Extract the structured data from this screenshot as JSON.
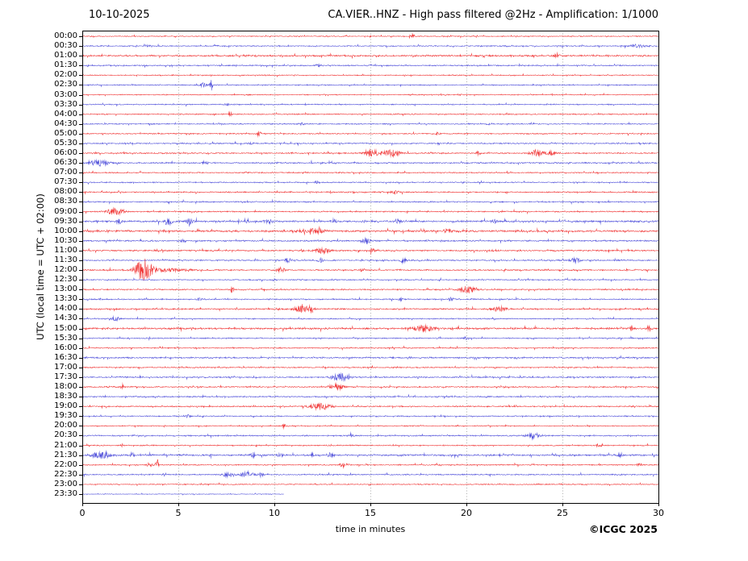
{
  "header": {
    "date_label": "10-10-2025",
    "title": "CA.VIER..HNZ - High pass filtered @2Hz - Amplification: 1/1000"
  },
  "footer": {
    "copyright": "©ICGC 2025"
  },
  "colors": {
    "red": "#ee1c1c",
    "blue": "#3b3bd6",
    "axis": "#000000",
    "grid": "#999999",
    "background": "#ffffff"
  },
  "chart_data": {
    "type": "line",
    "subtype": "helicorder-seismogram",
    "station": "CA.VIER..HNZ",
    "date": "10-10-2025",
    "filter": "High pass filtered @2Hz",
    "amplification": "1/1000",
    "title_right": "CA.VIER..HNZ - High pass filtered @2Hz - Amplification: 1/1000",
    "xlabel": "time in minutes",
    "ylabel": "UTC (local time = UTC + 02:00)",
    "xlim": [
      0,
      30
    ],
    "x_ticks": [
      0,
      5,
      10,
      15,
      20,
      25,
      30
    ],
    "grid": "vertical dotted lines at 5-minute intervals",
    "legend": "none",
    "minutes_per_row": 30,
    "events_format": "[start_minute, peak_amplitude_px, envelope_sigma_min]",
    "rows": [
      {
        "t": "00:00",
        "c": "red",
        "n": 0.7,
        "end": 30,
        "e": [
          [
            17.2,
            2.5,
            0.1
          ]
        ]
      },
      {
        "t": "00:30",
        "c": "blue",
        "n": 0.8,
        "end": 30,
        "e": [
          [
            28.9,
            2.2,
            0.25
          ],
          [
            3.4,
            1.2,
            0.1
          ]
        ]
      },
      {
        "t": "01:00",
        "c": "red",
        "n": 1.2,
        "end": 30,
        "e": [
          [
            24.7,
            1.8,
            0.12
          ]
        ]
      },
      {
        "t": "01:30",
        "c": "blue",
        "n": 0.9,
        "end": 30,
        "e": [
          [
            12.3,
            1.2,
            0.1
          ]
        ]
      },
      {
        "t": "02:00",
        "c": "red",
        "n": 0.7,
        "end": 30,
        "e": []
      },
      {
        "t": "02:30",
        "c": "blue",
        "n": 0.8,
        "end": 30,
        "e": [
          [
            6.7,
            8,
            0.05
          ],
          [
            6.3,
            2.5,
            0.12
          ]
        ]
      },
      {
        "t": "03:00",
        "c": "red",
        "n": 0.7,
        "end": 30,
        "e": []
      },
      {
        "t": "03:30",
        "c": "blue",
        "n": 0.8,
        "end": 30,
        "e": [
          [
            7.5,
            1.4,
            0.1
          ]
        ]
      },
      {
        "t": "04:00",
        "c": "red",
        "n": 0.8,
        "end": 30,
        "e": [
          [
            7.7,
            3,
            0.07
          ]
        ]
      },
      {
        "t": "04:30",
        "c": "blue",
        "n": 0.8,
        "end": 30,
        "e": [
          [
            11.4,
            1.4,
            0.1
          ]
        ]
      },
      {
        "t": "05:00",
        "c": "red",
        "n": 0.8,
        "end": 30,
        "e": [
          [
            9.2,
            3.2,
            0.07
          ],
          [
            18.5,
            1.5,
            0.1
          ]
        ]
      },
      {
        "t": "05:30",
        "c": "blue",
        "n": 0.9,
        "end": 30,
        "e": [
          [
            8.8,
            1.4,
            0.1
          ]
        ]
      },
      {
        "t": "06:00",
        "c": "red",
        "n": 0.9,
        "end": 30,
        "e": [
          [
            15.1,
            4,
            0.25
          ],
          [
            16.1,
            4,
            0.3
          ],
          [
            23.7,
            4,
            0.25
          ],
          [
            24.4,
            2.5,
            0.15
          ],
          [
            20.6,
            1.8,
            0.1
          ]
        ]
      },
      {
        "t": "06:30",
        "c": "blue",
        "n": 1.0,
        "end": 30,
        "e": [
          [
            0.9,
            3.5,
            0.35
          ],
          [
            6.4,
            2,
            0.1
          ]
        ]
      },
      {
        "t": "07:00",
        "c": "red",
        "n": 0.8,
        "end": 30,
        "e": []
      },
      {
        "t": "07:30",
        "c": "blue",
        "n": 0.8,
        "end": 30,
        "e": [
          [
            12.2,
            1.3,
            0.1
          ]
        ]
      },
      {
        "t": "08:00",
        "c": "red",
        "n": 0.9,
        "end": 30,
        "e": [
          [
            16.3,
            1.8,
            0.15
          ]
        ]
      },
      {
        "t": "08:30",
        "c": "blue",
        "n": 0.9,
        "end": 30,
        "e": []
      },
      {
        "t": "09:00",
        "c": "red",
        "n": 0.9,
        "end": 30,
        "e": [
          [
            1.7,
            4,
            0.3
          ]
        ]
      },
      {
        "t": "09:30",
        "c": "blue",
        "n": 1.3,
        "end": 30,
        "e": [
          [
            1.9,
            2.8,
            0.1
          ],
          [
            4.5,
            3.2,
            0.15
          ],
          [
            5.6,
            3.2,
            0.12
          ],
          [
            8.6,
            2.4,
            0.1
          ],
          [
            9.7,
            2.8,
            0.15
          ],
          [
            13.1,
            2.4,
            0.1
          ],
          [
            16.4,
            2.4,
            0.1
          ],
          [
            21.5,
            2,
            0.1
          ]
        ]
      },
      {
        "t": "10:00",
        "c": "red",
        "n": 1.4,
        "end": 30,
        "e": [
          [
            12,
            2.8,
            0.4
          ],
          [
            19,
            2,
            0.15
          ]
        ]
      },
      {
        "t": "10:30",
        "c": "blue",
        "n": 1.0,
        "end": 30,
        "e": [
          [
            14.8,
            3,
            0.15
          ],
          [
            5.2,
            1.5,
            0.1
          ]
        ]
      },
      {
        "t": "11:00",
        "c": "red",
        "n": 1.0,
        "end": 30,
        "e": [
          [
            12.5,
            3.2,
            0.25
          ],
          [
            15.1,
            2,
            0.1
          ]
        ]
      },
      {
        "t": "11:30",
        "c": "blue",
        "n": 0.9,
        "end": 30,
        "e": [
          [
            10.7,
            2.8,
            0.1
          ],
          [
            12.4,
            2.4,
            0.1
          ],
          [
            16.7,
            2.8,
            0.1
          ],
          [
            25.7,
            2.8,
            0.2
          ]
        ]
      },
      {
        "t": "12:00",
        "c": "red",
        "n": 0.9,
        "end": 30,
        "e": [
          [
            3.2,
            14,
            0.3
          ],
          [
            4.6,
            1.6,
            0.8
          ],
          [
            10.3,
            3.4,
            0.15
          ],
          [
            14.6,
            1.6,
            0.1
          ]
        ]
      },
      {
        "t": "12:30",
        "c": "blue",
        "n": 0.8,
        "end": 30,
        "e": [
          [
            10,
            1.3,
            0.1
          ]
        ]
      },
      {
        "t": "13:00",
        "c": "red",
        "n": 0.9,
        "end": 30,
        "e": [
          [
            7.8,
            5,
            0.05
          ],
          [
            20.1,
            4.2,
            0.3
          ]
        ]
      },
      {
        "t": "13:30",
        "c": "blue",
        "n": 0.9,
        "end": 30,
        "e": [
          [
            6.1,
            1.8,
            0.1
          ],
          [
            16.6,
            1.8,
            0.1
          ],
          [
            19.2,
            1.8,
            0.1
          ]
        ]
      },
      {
        "t": "14:00",
        "c": "red",
        "n": 1.0,
        "end": 30,
        "e": [
          [
            11.4,
            3.8,
            0.25
          ],
          [
            11.9,
            4,
            0.08
          ],
          [
            21.7,
            2.8,
            0.25
          ]
        ]
      },
      {
        "t": "14:30",
        "c": "blue",
        "n": 0.8,
        "end": 30,
        "e": [
          [
            1.7,
            3.2,
            0.15
          ]
        ]
      },
      {
        "t": "15:00",
        "c": "red",
        "n": 1.3,
        "end": 30,
        "e": [
          [
            17.8,
            3.2,
            0.35
          ],
          [
            28.6,
            2.4,
            0.07
          ],
          [
            29.5,
            3.8,
            0.08
          ]
        ]
      },
      {
        "t": "15:30",
        "c": "blue",
        "n": 0.8,
        "end": 30,
        "e": [
          [
            20,
            1.8,
            0.1
          ]
        ]
      },
      {
        "t": "16:00",
        "c": "red",
        "n": 0.8,
        "end": 30,
        "e": []
      },
      {
        "t": "16:30",
        "c": "blue",
        "n": 1.1,
        "end": 30,
        "e": []
      },
      {
        "t": "17:00",
        "c": "red",
        "n": 0.8,
        "end": 30,
        "e": []
      },
      {
        "t": "17:30",
        "c": "blue",
        "n": 1.0,
        "end": 30,
        "e": [
          [
            13.4,
            4.8,
            0.3
          ]
        ]
      },
      {
        "t": "18:00",
        "c": "red",
        "n": 0.9,
        "end": 30,
        "e": [
          [
            2.1,
            4,
            0.06
          ],
          [
            13.3,
            3.6,
            0.25
          ]
        ]
      },
      {
        "t": "18:30",
        "c": "blue",
        "n": 0.9,
        "end": 30,
        "e": []
      },
      {
        "t": "19:00",
        "c": "red",
        "n": 0.9,
        "end": 30,
        "e": [
          [
            12.4,
            4.2,
            0.35
          ]
        ]
      },
      {
        "t": "19:30",
        "c": "blue",
        "n": 0.8,
        "end": 30,
        "e": [
          [
            5.5,
            1.8,
            0.1
          ]
        ]
      },
      {
        "t": "20:00",
        "c": "red",
        "n": 0.7,
        "end": 30,
        "e": [
          [
            10.5,
            3.4,
            0.06
          ]
        ]
      },
      {
        "t": "20:30",
        "c": "blue",
        "n": 0.9,
        "end": 30,
        "e": [
          [
            23.5,
            3.8,
            0.25
          ],
          [
            14,
            1.8,
            0.1
          ]
        ]
      },
      {
        "t": "21:00",
        "c": "red",
        "n": 0.8,
        "end": 30,
        "e": [
          [
            26.9,
            1.8,
            0.1
          ]
        ]
      },
      {
        "t": "21:30",
        "c": "blue",
        "n": 1.2,
        "end": 30,
        "e": [
          [
            1,
            3.8,
            0.35
          ],
          [
            2.6,
            2.4,
            0.1
          ],
          [
            8.9,
            2.8,
            0.1
          ],
          [
            10.3,
            2.4,
            0.1
          ],
          [
            12,
            2.4,
            0.1
          ],
          [
            12.9,
            2.4,
            0.1
          ],
          [
            28,
            2,
            0.1
          ]
        ]
      },
      {
        "t": "22:00",
        "c": "red",
        "n": 0.8,
        "end": 30,
        "e": [
          [
            3.5,
            2.8,
            0.08
          ],
          [
            3.9,
            7,
            0.06
          ],
          [
            13.6,
            2.4,
            0.15
          ],
          [
            29,
            1.6,
            0.1
          ]
        ]
      },
      {
        "t": "22:30",
        "c": "blue",
        "n": 0.9,
        "end": 30,
        "e": [
          [
            7.6,
            2.8,
            0.2
          ],
          [
            8.6,
            2.8,
            0.25
          ],
          [
            9.3,
            2.4,
            0.1
          ]
        ]
      },
      {
        "t": "23:00",
        "c": "red",
        "n": 0.7,
        "end": 30,
        "e": []
      },
      {
        "t": "23:30",
        "c": "blue",
        "n": 0.45,
        "end": 10.5,
        "e": []
      }
    ]
  }
}
